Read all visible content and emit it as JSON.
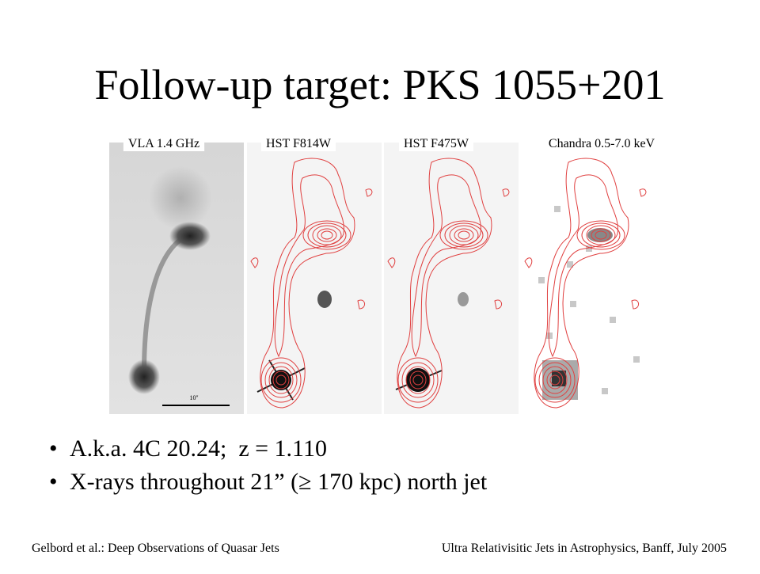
{
  "title": "Follow-up target: PKS 1055+201",
  "panels": [
    {
      "label": "VLA 1.4 GHz",
      "scale_label": "10''"
    },
    {
      "label": "HST F814W"
    },
    {
      "label": "HST F475W"
    },
    {
      "label": "Chandra 0.5-7.0 keV"
    }
  ],
  "bullets": [
    "A.k.a. 4C 20.24;  z = 1.110",
    "X-rays throughout 21” (≥ 170 kpc) north jet"
  ],
  "footer": {
    "left": "Gelbord et al.: Deep Observations of Quasar Jets",
    "right": "Ultra Relativisitic Jets in Astrophysics, Banff, July 2005"
  }
}
